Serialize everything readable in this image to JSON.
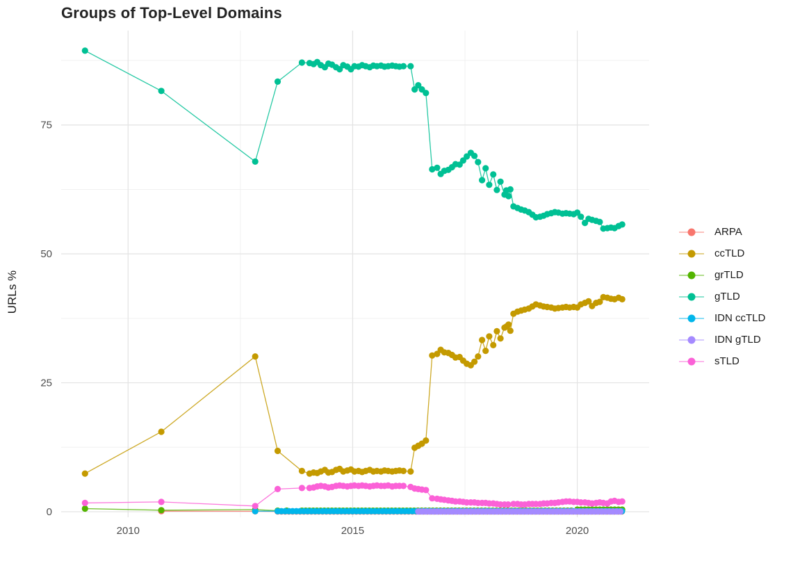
{
  "chart_data": {
    "type": "line",
    "title": "Groups of Top-Level Domains",
    "xlabel": "",
    "ylabel": "URLs %",
    "grid": "major+minor",
    "legend_position": "right",
    "background": "#ffffff",
    "major_grid_color": "#e3e3e3",
    "minor_grid_color": "#f0f0f0",
    "xlim": [
      2008.51,
      2021.6
    ],
    "ylim": [
      -1.08,
      93.3
    ],
    "x_ticks": [
      2010,
      2015,
      2020
    ],
    "x_tick_labels": [
      "2010",
      "2015",
      "2020"
    ],
    "x_minor_ticks": [
      2012.5,
      2017.5
    ],
    "y_ticks": [
      0,
      25,
      50,
      75
    ],
    "y_tick_labels": [
      "0",
      "25",
      "50",
      "75"
    ],
    "y_minor_ticks": [
      12.5,
      37.5,
      62.5,
      87.5
    ],
    "series": [
      {
        "name": "ARPA",
        "color": "#F8766D",
        "points": [
          [
            2010.74,
            0.1
          ],
          [
            2012.83,
            0.08
          ]
        ],
        "flats": [
          {
            "from": 2013.33,
            "to": 2021.0,
            "step": 0.0833,
            "value": 0.05
          }
        ]
      },
      {
        "name": "ccTLD",
        "color": "#C49A00",
        "points": [
          [
            2009.04,
            7.4
          ],
          [
            2010.74,
            15.5
          ],
          [
            2012.83,
            30.1
          ],
          [
            2013.33,
            11.8
          ],
          [
            2013.87,
            7.9
          ],
          [
            2014.04,
            7.4
          ],
          [
            2014.13,
            7.6
          ],
          [
            2014.21,
            7.5
          ],
          [
            2014.29,
            7.8
          ],
          [
            2014.38,
            8.1
          ],
          [
            2014.46,
            7.6
          ],
          [
            2014.54,
            7.7
          ],
          [
            2014.63,
            8.1
          ],
          [
            2014.71,
            8.3
          ],
          [
            2014.79,
            7.8
          ],
          [
            2014.88,
            8.0
          ],
          [
            2014.96,
            8.2
          ],
          [
            2015.04,
            7.8
          ],
          [
            2015.13,
            7.9
          ],
          [
            2015.21,
            7.7
          ],
          [
            2015.29,
            7.9
          ],
          [
            2015.38,
            8.1
          ],
          [
            2015.46,
            7.8
          ],
          [
            2015.54,
            7.9
          ],
          [
            2015.63,
            7.8
          ],
          [
            2015.71,
            8.0
          ],
          [
            2015.79,
            7.9
          ],
          [
            2015.88,
            7.8
          ],
          [
            2015.96,
            7.9
          ],
          [
            2016.04,
            8.0
          ],
          [
            2016.13,
            7.9
          ],
          [
            2016.29,
            7.8
          ],
          [
            2016.38,
            12.4
          ],
          [
            2016.46,
            12.8
          ],
          [
            2016.54,
            13.2
          ],
          [
            2016.63,
            13.8
          ],
          [
            2016.77,
            30.3
          ],
          [
            2016.88,
            30.6
          ],
          [
            2016.96,
            31.4
          ],
          [
            2017.04,
            30.9
          ],
          [
            2017.13,
            30.8
          ],
          [
            2017.21,
            30.4
          ],
          [
            2017.29,
            29.9
          ],
          [
            2017.38,
            30.0
          ],
          [
            2017.46,
            29.3
          ],
          [
            2017.54,
            28.7
          ],
          [
            2017.63,
            28.4
          ],
          [
            2017.71,
            29.1
          ],
          [
            2017.79,
            30.1
          ],
          [
            2017.88,
            33.3
          ],
          [
            2017.96,
            31.2
          ],
          [
            2018.04,
            34.0
          ],
          [
            2018.13,
            32.3
          ],
          [
            2018.21,
            35.0
          ],
          [
            2018.29,
            33.6
          ],
          [
            2018.38,
            35.7
          ],
          [
            2018.42,
            35.9
          ],
          [
            2018.47,
            36.3
          ],
          [
            2018.51,
            35.1
          ],
          [
            2018.58,
            38.4
          ],
          [
            2018.67,
            38.8
          ],
          [
            2018.75,
            39.0
          ],
          [
            2018.83,
            39.2
          ],
          [
            2018.92,
            39.4
          ],
          [
            2019.0,
            39.8
          ],
          [
            2019.08,
            40.2
          ],
          [
            2019.17,
            40.0
          ],
          [
            2019.25,
            39.8
          ],
          [
            2019.33,
            39.7
          ],
          [
            2019.42,
            39.6
          ],
          [
            2019.5,
            39.4
          ],
          [
            2019.58,
            39.5
          ],
          [
            2019.67,
            39.6
          ],
          [
            2019.75,
            39.7
          ],
          [
            2019.83,
            39.6
          ],
          [
            2019.92,
            39.7
          ],
          [
            2020.0,
            39.6
          ],
          [
            2020.08,
            40.2
          ],
          [
            2020.17,
            40.5
          ],
          [
            2020.25,
            40.8
          ],
          [
            2020.33,
            39.9
          ],
          [
            2020.42,
            40.5
          ],
          [
            2020.5,
            40.7
          ],
          [
            2020.58,
            41.6
          ],
          [
            2020.67,
            41.5
          ],
          [
            2020.75,
            41.3
          ],
          [
            2020.83,
            41.2
          ],
          [
            2020.92,
            41.5
          ],
          [
            2021.0,
            41.2
          ]
        ],
        "flats": []
      },
      {
        "name": "grTLD",
        "color": "#53B400",
        "points": [
          [
            2009.04,
            0.6
          ],
          [
            2010.74,
            0.3
          ],
          [
            2012.83,
            0.4
          ],
          [
            2013.33,
            0.2
          ],
          [
            2013.53,
            0.2
          ]
        ],
        "flats": [
          {
            "from": 2013.87,
            "to": 2019.92,
            "step": 0.0833,
            "value": 0.2
          },
          {
            "from": 2020.0,
            "to": 2021.0,
            "step": 0.0833,
            "value": 0.4
          }
        ]
      },
      {
        "name": "gTLD",
        "color": "#00C094",
        "points": [
          [
            2009.04,
            89.4
          ],
          [
            2010.74,
            81.6
          ],
          [
            2012.83,
            67.9
          ],
          [
            2013.33,
            83.4
          ],
          [
            2013.87,
            87.1
          ],
          [
            2014.04,
            87.0
          ],
          [
            2014.13,
            86.8
          ],
          [
            2014.21,
            87.2
          ],
          [
            2014.29,
            86.6
          ],
          [
            2014.38,
            86.2
          ],
          [
            2014.46,
            86.9
          ],
          [
            2014.54,
            86.7
          ],
          [
            2014.63,
            86.2
          ],
          [
            2014.71,
            85.8
          ],
          [
            2014.79,
            86.6
          ],
          [
            2014.88,
            86.3
          ],
          [
            2014.96,
            85.8
          ],
          [
            2015.04,
            86.4
          ],
          [
            2015.13,
            86.3
          ],
          [
            2015.21,
            86.6
          ],
          [
            2015.29,
            86.4
          ],
          [
            2015.38,
            86.2
          ],
          [
            2015.46,
            86.5
          ],
          [
            2015.54,
            86.4
          ],
          [
            2015.63,
            86.5
          ],
          [
            2015.71,
            86.3
          ],
          [
            2015.79,
            86.4
          ],
          [
            2015.88,
            86.5
          ],
          [
            2015.96,
            86.4
          ],
          [
            2016.04,
            86.3
          ],
          [
            2016.13,
            86.4
          ],
          [
            2016.29,
            86.4
          ],
          [
            2016.38,
            81.9
          ],
          [
            2016.46,
            82.7
          ],
          [
            2016.54,
            81.9
          ],
          [
            2016.63,
            81.2
          ],
          [
            2016.77,
            66.4
          ],
          [
            2016.88,
            66.7
          ],
          [
            2016.96,
            65.5
          ],
          [
            2017.04,
            66.1
          ],
          [
            2017.13,
            66.3
          ],
          [
            2017.21,
            66.8
          ],
          [
            2017.29,
            67.4
          ],
          [
            2017.38,
            67.3
          ],
          [
            2017.46,
            68.1
          ],
          [
            2017.54,
            68.9
          ],
          [
            2017.63,
            69.6
          ],
          [
            2017.71,
            69.0
          ],
          [
            2017.79,
            67.8
          ],
          [
            2017.88,
            64.3
          ],
          [
            2017.96,
            66.6
          ],
          [
            2018.04,
            63.4
          ],
          [
            2018.13,
            65.4
          ],
          [
            2018.21,
            62.4
          ],
          [
            2018.29,
            64.0
          ],
          [
            2018.38,
            61.5
          ],
          [
            2018.42,
            62.3
          ],
          [
            2018.47,
            61.2
          ],
          [
            2018.51,
            62.5
          ],
          [
            2018.58,
            59.2
          ],
          [
            2018.67,
            58.9
          ],
          [
            2018.75,
            58.6
          ],
          [
            2018.83,
            58.4
          ],
          [
            2018.92,
            58.1
          ],
          [
            2019.0,
            57.6
          ],
          [
            2019.08,
            57.1
          ],
          [
            2019.17,
            57.2
          ],
          [
            2019.25,
            57.4
          ],
          [
            2019.33,
            57.7
          ],
          [
            2019.42,
            57.9
          ],
          [
            2019.5,
            58.1
          ],
          [
            2019.58,
            58.0
          ],
          [
            2019.67,
            57.8
          ],
          [
            2019.75,
            57.9
          ],
          [
            2019.83,
            57.8
          ],
          [
            2019.92,
            57.7
          ],
          [
            2020.0,
            58.0
          ],
          [
            2020.08,
            57.2
          ],
          [
            2020.17,
            56.0
          ],
          [
            2020.25,
            56.8
          ],
          [
            2020.33,
            56.6
          ],
          [
            2020.42,
            56.4
          ],
          [
            2020.5,
            56.2
          ],
          [
            2020.58,
            54.9
          ],
          [
            2020.67,
            55.0
          ],
          [
            2020.75,
            55.1
          ],
          [
            2020.83,
            55.0
          ],
          [
            2020.92,
            55.4
          ],
          [
            2021.0,
            55.7
          ]
        ],
        "flats": []
      },
      {
        "name": "IDN ccTLD",
        "color": "#00B6EB",
        "points": [
          [
            2012.83,
            0.1
          ]
        ],
        "flats": [
          {
            "from": 2013.33,
            "to": 2021.0,
            "step": 0.0833,
            "value": 0.1
          }
        ]
      },
      {
        "name": "IDN gTLD",
        "color": "#A58AFF",
        "points": [],
        "flats": [
          {
            "from": 2016.46,
            "to": 2021.0,
            "step": 0.0833,
            "value": 0.05
          }
        ]
      },
      {
        "name": "sTLD",
        "color": "#FB61D7",
        "points": [
          [
            2009.04,
            1.7
          ],
          [
            2010.74,
            1.9
          ],
          [
            2012.83,
            1.1
          ],
          [
            2013.33,
            4.4
          ],
          [
            2013.87,
            4.6
          ],
          [
            2014.04,
            4.6
          ],
          [
            2014.13,
            4.7
          ],
          [
            2014.21,
            4.9
          ],
          [
            2014.29,
            5.0
          ],
          [
            2014.38,
            4.9
          ],
          [
            2014.46,
            4.7
          ],
          [
            2014.54,
            4.8
          ],
          [
            2014.63,
            5.0
          ],
          [
            2014.71,
            5.1
          ],
          [
            2014.79,
            5.0
          ],
          [
            2014.88,
            4.9
          ],
          [
            2014.96,
            5.0
          ],
          [
            2015.04,
            5.1
          ],
          [
            2015.13,
            5.0
          ],
          [
            2015.21,
            5.1
          ],
          [
            2015.29,
            5.0
          ],
          [
            2015.38,
            4.9
          ],
          [
            2015.46,
            5.0
          ],
          [
            2015.54,
            5.1
          ],
          [
            2015.63,
            5.0
          ],
          [
            2015.71,
            5.0
          ],
          [
            2015.79,
            5.1
          ],
          [
            2015.88,
            4.9
          ],
          [
            2015.96,
            5.0
          ],
          [
            2016.04,
            5.0
          ],
          [
            2016.13,
            5.0
          ],
          [
            2016.29,
            4.8
          ],
          [
            2016.38,
            4.5
          ],
          [
            2016.46,
            4.4
          ],
          [
            2016.54,
            4.3
          ],
          [
            2016.63,
            4.2
          ],
          [
            2016.77,
            2.6
          ],
          [
            2016.88,
            2.5
          ],
          [
            2016.96,
            2.4
          ],
          [
            2017.04,
            2.3
          ],
          [
            2017.13,
            2.2
          ],
          [
            2017.21,
            2.1
          ],
          [
            2017.29,
            2.0
          ],
          [
            2017.38,
            2.0
          ],
          [
            2017.46,
            1.9
          ],
          [
            2017.54,
            1.8
          ],
          [
            2017.63,
            1.8
          ],
          [
            2017.71,
            1.8
          ],
          [
            2017.79,
            1.7
          ],
          [
            2017.88,
            1.7
          ],
          [
            2017.96,
            1.7
          ],
          [
            2018.04,
            1.6
          ],
          [
            2018.13,
            1.6
          ],
          [
            2018.21,
            1.5
          ],
          [
            2018.29,
            1.4
          ],
          [
            2018.38,
            1.4
          ],
          [
            2018.46,
            1.4
          ],
          [
            2018.58,
            1.5
          ],
          [
            2018.67,
            1.5
          ],
          [
            2018.75,
            1.4
          ],
          [
            2018.83,
            1.4
          ],
          [
            2018.92,
            1.5
          ],
          [
            2019.0,
            1.5
          ],
          [
            2019.08,
            1.5
          ],
          [
            2019.17,
            1.5
          ],
          [
            2019.25,
            1.6
          ],
          [
            2019.33,
            1.6
          ],
          [
            2019.42,
            1.7
          ],
          [
            2019.5,
            1.7
          ],
          [
            2019.58,
            1.8
          ],
          [
            2019.67,
            1.9
          ],
          [
            2019.75,
            2.0
          ],
          [
            2019.83,
            2.0
          ],
          [
            2019.92,
            1.9
          ],
          [
            2020.0,
            1.9
          ],
          [
            2020.08,
            1.8
          ],
          [
            2020.17,
            1.8
          ],
          [
            2020.25,
            1.7
          ],
          [
            2020.33,
            1.6
          ],
          [
            2020.42,
            1.7
          ],
          [
            2020.5,
            1.8
          ],
          [
            2020.58,
            1.7
          ],
          [
            2020.67,
            1.6
          ],
          [
            2020.75,
            2.0
          ],
          [
            2020.83,
            2.1
          ],
          [
            2020.92,
            1.9
          ],
          [
            2021.0,
            2.0
          ]
        ],
        "flats": []
      }
    ]
  }
}
